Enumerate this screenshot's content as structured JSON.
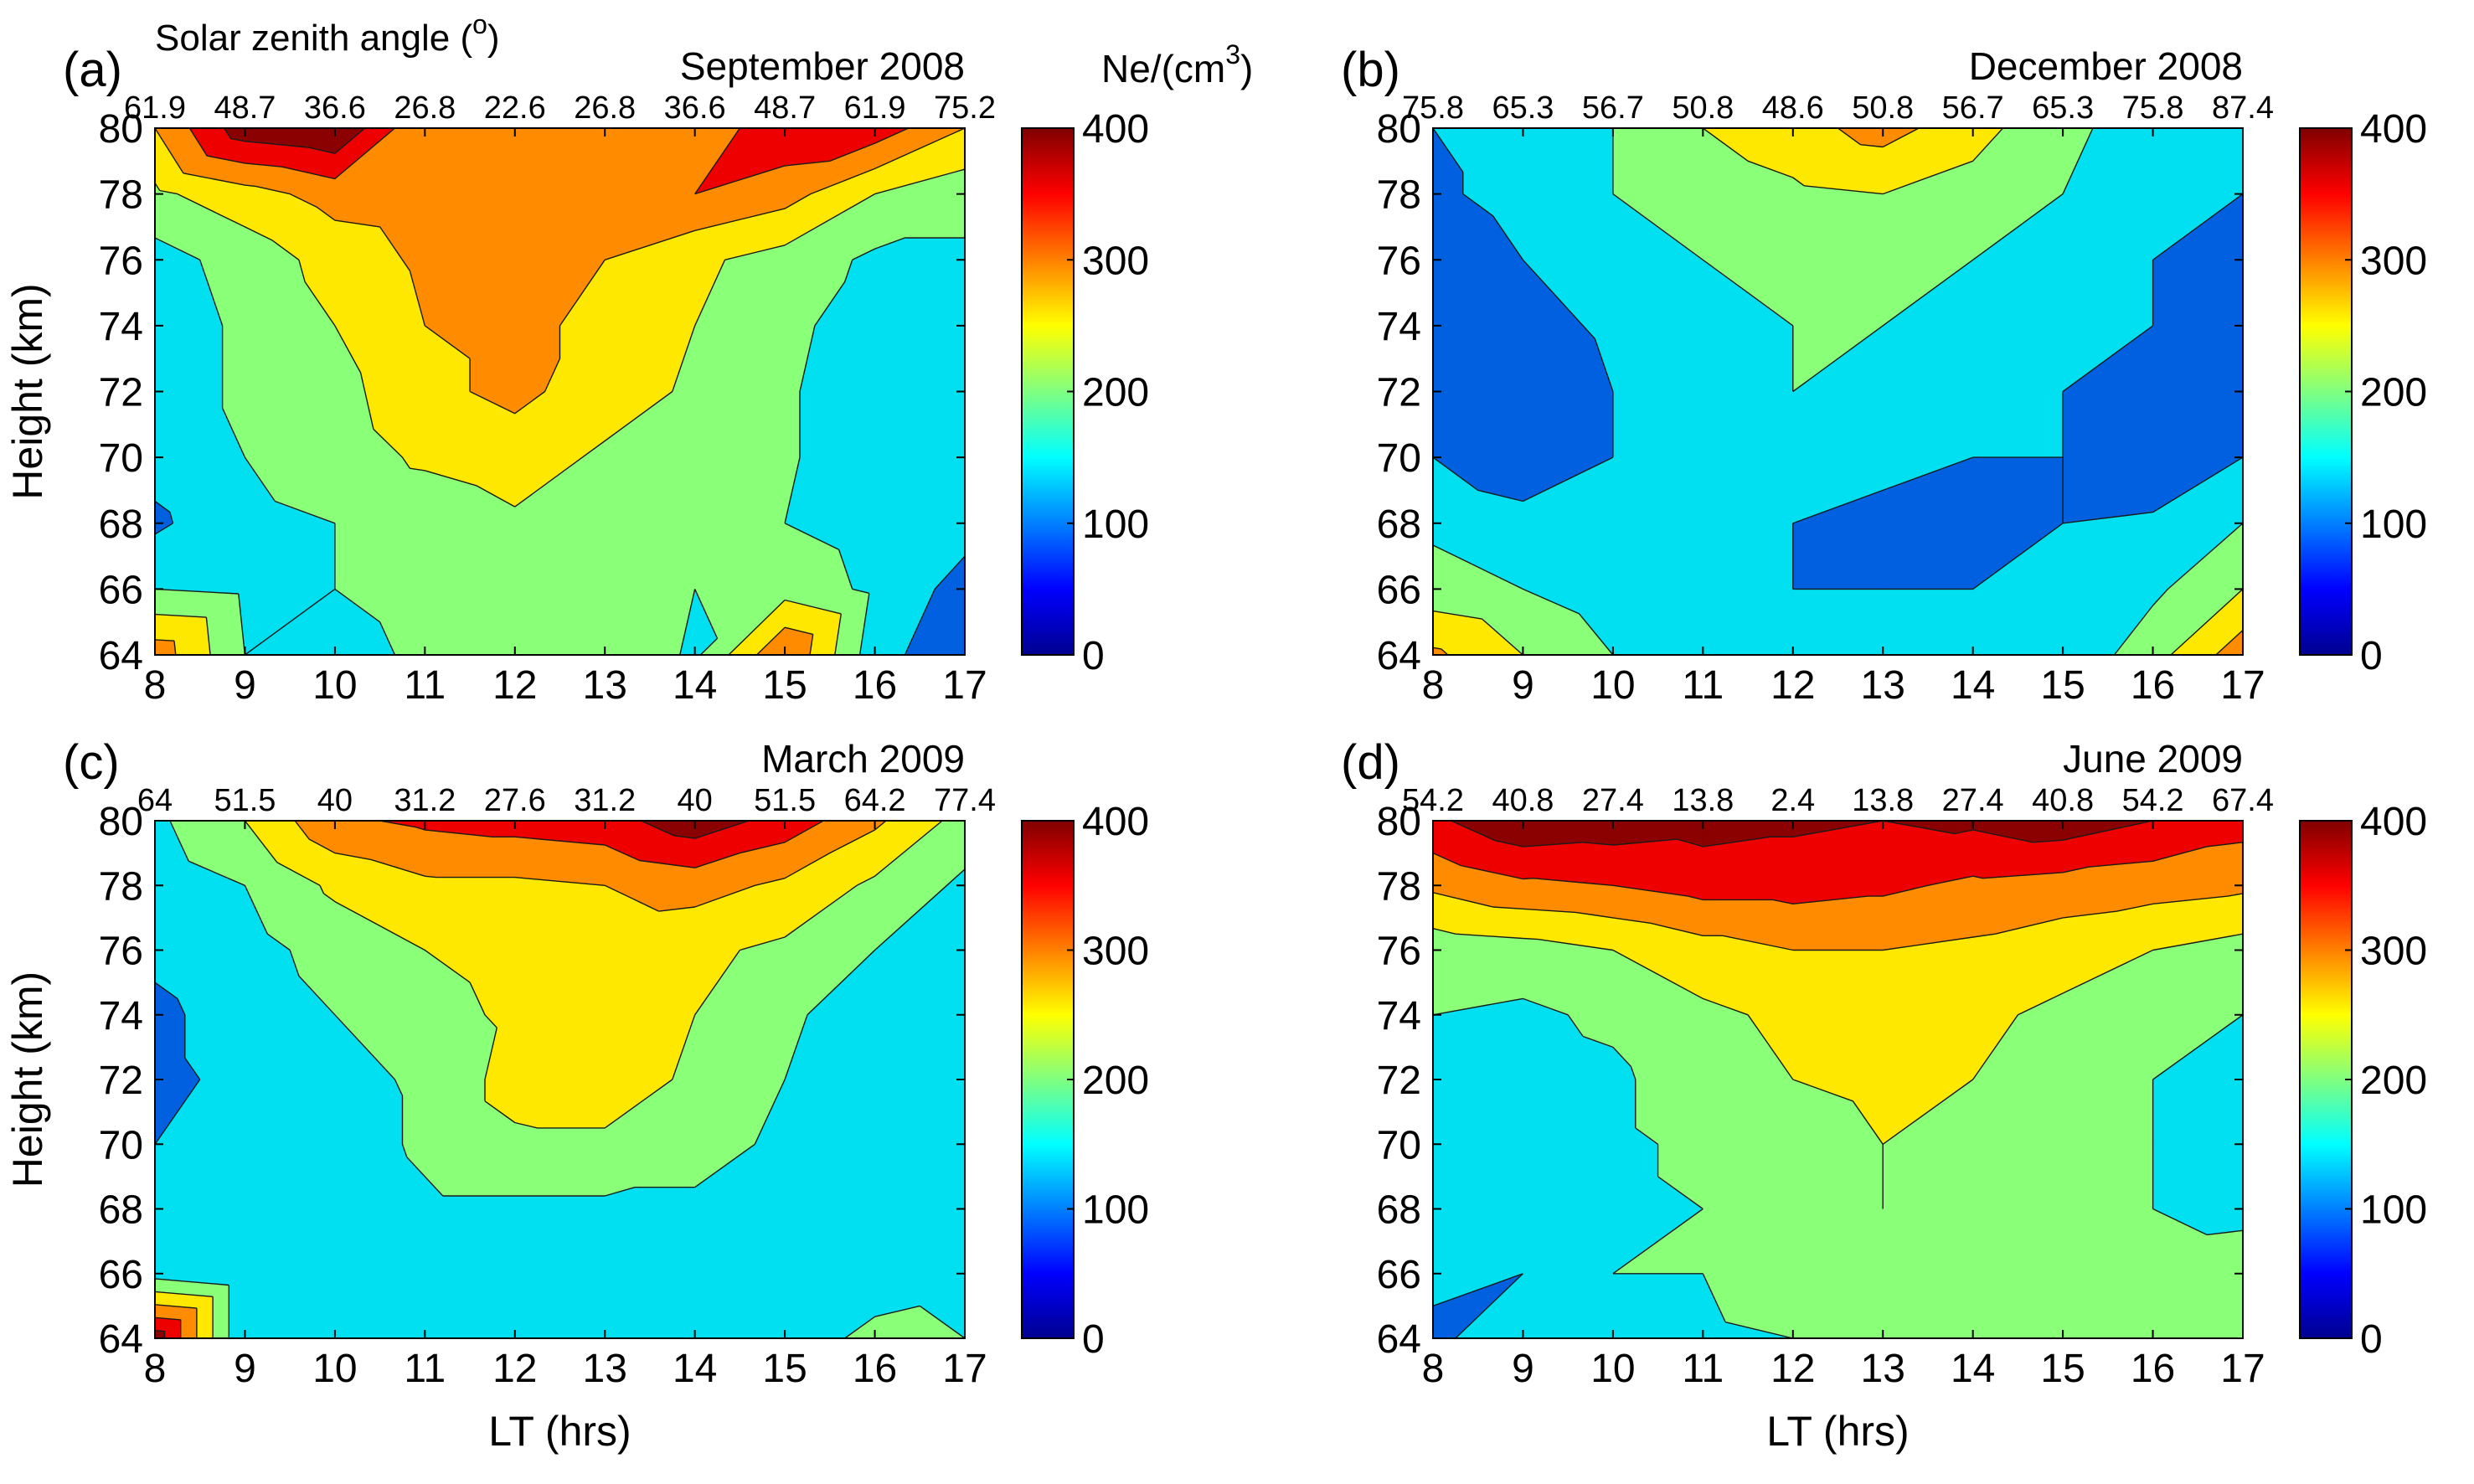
{
  "figure": {
    "sza_caption": "Solar zenith angle (",
    "sza_caption_sup": "o",
    "sza_caption_end": ")",
    "ne_unit": "Ne/(cm",
    "ne_unit_sup": "3",
    "ne_unit_end": ")"
  },
  "colors": {
    "c0": "#00008f",
    "c1": "#0060e0",
    "c2": "#00e0f0",
    "c3": "#8aff78",
    "c4": "#ffe800",
    "c5": "#ff8c00",
    "c6": "#ee0000",
    "c7": "#8b0000",
    "jet": [
      "#00008f",
      "#0000ff",
      "#0080ff",
      "#00ffff",
      "#80ff80",
      "#ffff00",
      "#ff8000",
      "#ff0000",
      "#800000"
    ]
  },
  "chart_data": [
    {
      "type": "contourf",
      "label": "(a)",
      "title": "September 2008",
      "xlabel": "",
      "ylabel": "Height (km)",
      "xlim": [
        8,
        17
      ],
      "ylim": [
        64,
        80
      ],
      "xticks": [
        8,
        9,
        10,
        11,
        12,
        13,
        14,
        15,
        16,
        17
      ],
      "yticks": [
        64,
        66,
        68,
        70,
        72,
        74,
        76,
        78,
        80
      ],
      "sza": [
        "61.9",
        "48.7",
        "36.6",
        "26.8",
        "22.6",
        "26.8",
        "36.6",
        "48.7",
        "61.9",
        "75.2"
      ],
      "colorbar": {
        "range": [
          0,
          400
        ],
        "ticks": [
          0,
          100,
          200,
          300,
          400
        ]
      },
      "x": [
        8,
        9,
        10,
        11,
        12,
        13,
        14,
        15,
        16,
        17
      ],
      "heights": [
        64,
        66,
        68,
        70,
        72,
        74,
        76,
        78,
        80
      ],
      "ne": [
        [
          280,
          150,
          130,
          160,
          190,
          200,
          140,
          300,
          120,
          60
        ],
        [
          150,
          140,
          150,
          170,
          190,
          160,
          150,
          180,
          140,
          80
        ],
        [
          90,
          140,
          150,
          160,
          190,
          190,
          170,
          150,
          130,
          120
        ],
        [
          120,
          150,
          170,
          210,
          230,
          190,
          180,
          160,
          100,
          110
        ],
        [
          120,
          160,
          180,
          240,
          260,
          230,
          190,
          160,
          100,
          100
        ],
        [
          120,
          160,
          200,
          250,
          260,
          240,
          200,
          170,
          110,
          110
        ],
        [
          130,
          170,
          220,
          260,
          260,
          250,
          210,
          180,
          140,
          140
        ],
        [
          190,
          230,
          270,
          280,
          270,
          260,
          300,
          270,
          200,
          170
        ],
        [
          250,
          380,
          400,
          250,
          270,
          300,
          260,
          340,
          330,
          250
        ]
      ]
    },
    {
      "type": "contourf",
      "label": "(b)",
      "title": "December 2008",
      "xlabel": "",
      "ylabel": "",
      "xlim": [
        8,
        17
      ],
      "ylim": [
        64,
        80
      ],
      "xticks": [
        8,
        9,
        10,
        11,
        12,
        13,
        14,
        15,
        16,
        17
      ],
      "yticks": [
        64,
        66,
        68,
        70,
        72,
        74,
        76,
        78,
        80
      ],
      "sza": [
        "75.8",
        "65.3",
        "56.7",
        "50.8",
        "48.6",
        "50.8",
        "56.7",
        "65.3",
        "75.8",
        "87.4"
      ],
      "colorbar": {
        "range": [
          0,
          400
        ],
        "ticks": [
          0,
          100,
          200,
          300,
          400
        ]
      },
      "x": [
        8,
        9,
        10,
        11,
        12,
        13,
        14,
        15,
        16,
        17
      ],
      "heights": [
        64,
        66,
        68,
        70,
        72,
        74,
        76,
        78,
        80
      ],
      "ne": [
        [
          260,
          200,
          150,
          110,
          100,
          100,
          100,
          110,
          180,
          280
        ],
        [
          170,
          150,
          120,
          100,
          100,
          100,
          100,
          100,
          140,
          200
        ],
        [
          140,
          120,
          100,
          100,
          100,
          90,
          90,
          100,
          110,
          150
        ],
        [
          100,
          60,
          100,
          110,
          140,
          110,
          100,
          100,
          50,
          100
        ],
        [
          100,
          60,
          100,
          140,
          150,
          130,
          100,
          100,
          80,
          100
        ],
        [
          70,
          80,
          110,
          140,
          150,
          150,
          110,
          100,
          100,
          90
        ],
        [
          60,
          100,
          130,
          150,
          160,
          160,
          150,
          120,
          100,
          80
        ],
        [
          90,
          120,
          150,
          170,
          190,
          200,
          180,
          150,
          120,
          100
        ],
        [
          100,
          120,
          150,
          200,
          230,
          270,
          220,
          160,
          130,
          110
        ]
      ]
    },
    {
      "type": "contourf",
      "label": "(c)",
      "title": "March 2009",
      "xlabel": "LT (hrs)",
      "ylabel": "Height (km)",
      "xlim": [
        8,
        17
      ],
      "ylim": [
        64,
        80
      ],
      "xticks": [
        8,
        9,
        10,
        11,
        12,
        13,
        14,
        15,
        16,
        17
      ],
      "yticks": [
        64,
        66,
        68,
        70,
        72,
        74,
        76,
        78,
        80
      ],
      "sza": [
        "64",
        "51.5",
        "40",
        "31.2",
        "27.6",
        "31.2",
        "40",
        "51.5",
        "64.2",
        "77.4"
      ],
      "colorbar": {
        "range": [
          0,
          400
        ],
        "ticks": [
          0,
          100,
          200,
          300,
          400
        ]
      },
      "x": [
        8,
        9,
        10,
        11,
        12,
        13,
        14,
        15,
        16,
        17
      ],
      "heights": [
        64,
        66,
        68,
        70,
        72,
        74,
        76,
        78,
        80
      ],
      "ne": [
        [
          380,
          100,
          110,
          120,
          120,
          120,
          110,
          130,
          160,
          150
        ],
        [
          130,
          100,
          110,
          110,
          110,
          110,
          110,
          110,
          130,
          140
        ],
        [
          120,
          110,
          110,
          140,
          140,
          140,
          140,
          120,
          110,
          120
        ],
        [
          100,
          110,
          120,
          160,
          190,
          190,
          170,
          140,
          120,
          110
        ],
        [
          90,
          110,
          130,
          160,
          220,
          230,
          190,
          150,
          120,
          100
        ],
        [
          90,
          120,
          150,
          180,
          210,
          220,
          200,
          160,
          120,
          100
        ],
        [
          110,
          130,
          170,
          200,
          220,
          220,
          210,
          190,
          150,
          110
        ],
        [
          120,
          150,
          210,
          240,
          240,
          250,
          270,
          240,
          190,
          140
        ],
        [
          140,
          200,
          290,
          310,
          320,
          330,
          380,
          330,
          260,
          180
        ]
      ]
    },
    {
      "type": "contourf",
      "label": "(d)",
      "title": "June 2009",
      "xlabel": "LT (hrs)",
      "ylabel": "",
      "xlim": [
        8,
        17
      ],
      "ylim": [
        64,
        80
      ],
      "xticks": [
        8,
        9,
        10,
        11,
        12,
        13,
        14,
        15,
        16,
        17
      ],
      "yticks": [
        64,
        66,
        68,
        70,
        72,
        74,
        76,
        78,
        80
      ],
      "sza": [
        "54.2",
        "40.8",
        "27.4",
        "13.8",
        "2.4",
        "13.8",
        "27.4",
        "40.8",
        "54.2",
        "67.4"
      ],
      "colorbar": {
        "range": [
          0,
          400
        ],
        "ticks": [
          0,
          100,
          200,
          300,
          400
        ]
      },
      "x": [
        8,
        9,
        10,
        11,
        12,
        13,
        14,
        15,
        16,
        17
      ],
      "heights": [
        64,
        66,
        68,
        70,
        72,
        74,
        76,
        78,
        80
      ],
      "ne": [
        [
          90,
          130,
          140,
          140,
          150,
          170,
          190,
          180,
          160,
          170
        ],
        [
          110,
          100,
          150,
          150,
          180,
          190,
          190,
          160,
          180,
          190
        ],
        [
          100,
          120,
          140,
          150,
          180,
          200,
          190,
          160,
          150,
          130
        ],
        [
          110,
          130,
          140,
          160,
          180,
          200,
          190,
          160,
          150,
          110
        ],
        [
          140,
          130,
          140,
          180,
          200,
          210,
          200,
          170,
          150,
          130
        ],
        [
          150,
          140,
          160,
          190,
          210,
          220,
          210,
          190,
          170,
          150
        ],
        [
          170,
          180,
          200,
          230,
          250,
          250,
          240,
          220,
          200,
          180
        ],
        [
          260,
          290,
          300,
          320,
          320,
          310,
          290,
          280,
          270,
          260
        ],
        [
          340,
          390,
          380,
          370,
          360,
          350,
          360,
          380,
          350,
          320
        ]
      ]
    }
  ]
}
